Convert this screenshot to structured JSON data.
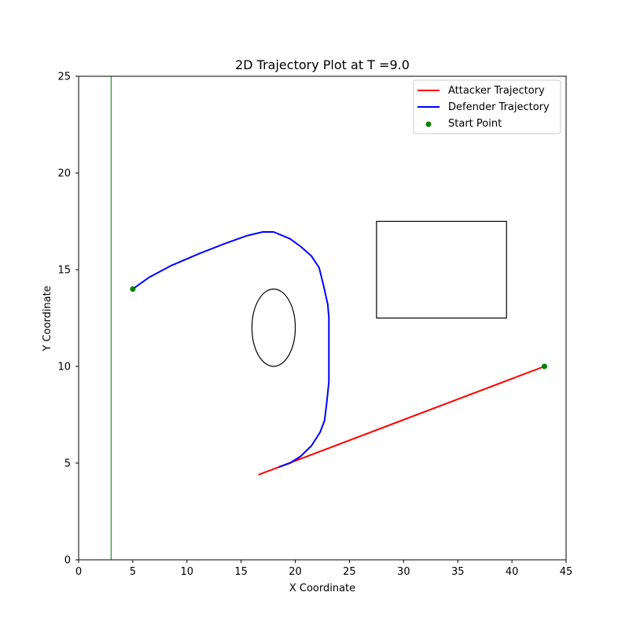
{
  "chart_data": {
    "type": "line",
    "title": "2D Trajectory Plot at T =9.0",
    "xlabel": "X Coordinate",
    "ylabel": "Y Coordinate",
    "xlim": [
      0,
      45
    ],
    "ylim": [
      0,
      25
    ],
    "xticks": [
      "0",
      "5",
      "10",
      "15",
      "20",
      "25",
      "30",
      "35",
      "40",
      "45"
    ],
    "yticks": [
      "0",
      "5",
      "10",
      "15",
      "20",
      "25"
    ],
    "grid": false,
    "legend_position": "upper right",
    "legend": [
      {
        "label": "Attacker Trajectory",
        "type": "line",
        "color": "#ff0000"
      },
      {
        "label": "Defender Trajectory",
        "type": "line",
        "color": "#0000ff"
      },
      {
        "label": "Start Point",
        "type": "marker",
        "color": "#008000"
      }
    ],
    "series": [
      {
        "name": "Attacker Trajectory",
        "color": "#ff0000",
        "points": [
          [
            43.0,
            10.0
          ],
          [
            18.5,
            4.8
          ],
          [
            16.6,
            4.4
          ]
        ]
      },
      {
        "name": "Defender Trajectory",
        "color": "#0000ff",
        "points": [
          [
            5.0,
            14.0
          ],
          [
            6.5,
            14.6
          ],
          [
            8.5,
            15.2
          ],
          [
            11,
            15.8
          ],
          [
            13.5,
            16.35
          ],
          [
            15.5,
            16.75
          ],
          [
            17,
            16.95
          ],
          [
            18,
            16.95
          ],
          [
            19.5,
            16.6
          ],
          [
            20.5,
            16.2
          ],
          [
            21.5,
            15.7
          ],
          [
            22.2,
            15.1
          ],
          [
            22.6,
            14.2
          ],
          [
            23.0,
            13.2
          ],
          [
            23.1,
            12.5
          ],
          [
            23.1,
            10.5
          ],
          [
            23.1,
            9.2
          ],
          [
            22.9,
            8.1
          ],
          [
            22.7,
            7.2
          ],
          [
            22.3,
            6.6
          ],
          [
            21.5,
            5.9
          ],
          [
            20.5,
            5.35
          ],
          [
            19.5,
            5.0
          ],
          [
            18.5,
            4.8
          ]
        ]
      }
    ],
    "start_points": [
      [
        5.0,
        14.0
      ],
      [
        43.0,
        10.0
      ]
    ],
    "obstacles": [
      {
        "type": "ellipse",
        "cx": 18.0,
        "cy": 12.0,
        "rx": 2.0,
        "ry": 2.0,
        "note": "ellipse width 4, height 4 in data units"
      },
      {
        "type": "rectangle",
        "x0": 27.5,
        "y0": 12.5,
        "x1": 39.5,
        "y1": 17.5
      }
    ],
    "goal_region": {
      "type": "rectangle",
      "x0": 0,
      "x1": 3,
      "y0": 0,
      "y1": 25,
      "color": "#008000"
    }
  }
}
